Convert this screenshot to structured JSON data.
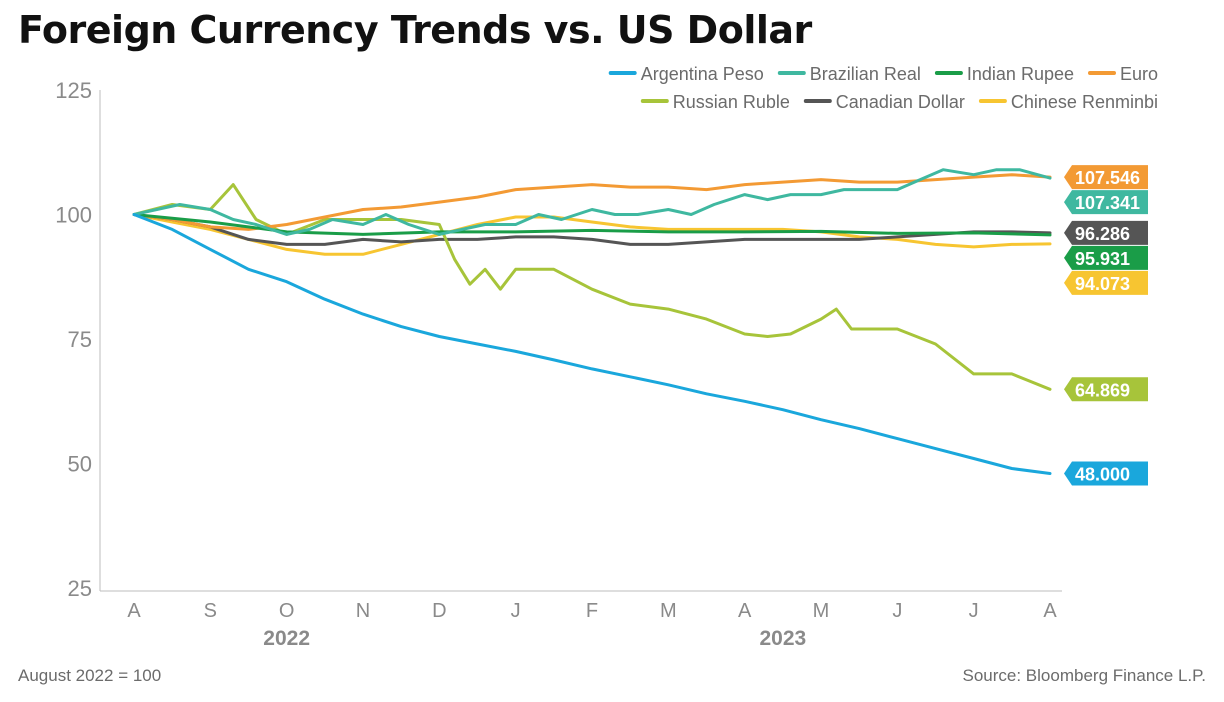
{
  "title": "Foreign Currency Trends vs. US Dollar",
  "footnote_left": "August 2022 = 100",
  "source": "Source: Bloomberg Finance L.P.",
  "chart_data": {
    "type": "line",
    "title": "Foreign Currency Trends vs. US Dollar",
    "xlabel": "",
    "ylabel": "",
    "ylim": [
      25,
      125
    ],
    "y_ticks": [
      25,
      50,
      75,
      100,
      125
    ],
    "x_ticks": [
      {
        "label": "A",
        "month": 0
      },
      {
        "label": "S",
        "month": 1
      },
      {
        "label": "O",
        "month": 2
      },
      {
        "label": "N",
        "month": 3
      },
      {
        "label": "D",
        "month": 4
      },
      {
        "label": "J",
        "month": 5
      },
      {
        "label": "F",
        "month": 6
      },
      {
        "label": "M",
        "month": 7
      },
      {
        "label": "A",
        "month": 8
      },
      {
        "label": "M",
        "month": 9
      },
      {
        "label": "J",
        "month": 10
      },
      {
        "label": "J",
        "month": 11
      },
      {
        "label": "A",
        "month": 12
      }
    ],
    "year_labels": [
      {
        "label": "2022",
        "month": 2
      },
      {
        "label": "2023",
        "month": 8.5
      }
    ],
    "grid": false,
    "legend_position": "top-right",
    "x_unit": "months since August 2022",
    "series": [
      {
        "name": "Argentina Peso",
        "color": "#1aa7dc",
        "end_label": "48.000",
        "x": [
          0,
          0.5,
          1,
          1.5,
          2,
          2.5,
          3,
          3.5,
          4,
          4.5,
          5,
          5.5,
          6,
          6.5,
          7,
          7.5,
          8,
          8.5,
          9,
          9.5,
          10,
          10.5,
          11,
          11.5,
          12
        ],
        "y": [
          100,
          97,
          93,
          89,
          86.5,
          83,
          80,
          77.5,
          75.5,
          74,
          72.5,
          70.8,
          69,
          67.4,
          65.8,
          64,
          62.5,
          60.8,
          58.8,
          57,
          55,
          53,
          51,
          49,
          48
        ]
      },
      {
        "name": "Brazilian Real",
        "color": "#3fb8a0",
        "end_label": "107.341",
        "x": [
          0,
          0.3,
          0.6,
          1,
          1.3,
          1.6,
          2,
          2.3,
          2.6,
          3,
          3.3,
          3.6,
          4,
          4.3,
          4.6,
          5,
          5.3,
          5.6,
          6,
          6.3,
          6.6,
          7,
          7.3,
          7.6,
          8,
          8.3,
          8.6,
          9,
          9.3,
          9.6,
          10,
          10.3,
          10.6,
          11,
          11.3,
          11.6,
          12
        ],
        "y": [
          100,
          101,
          102,
          101,
          99,
          98,
          96,
          97,
          99,
          98,
          100,
          98,
          96,
          97,
          98,
          98,
          100,
          99,
          101,
          100,
          100,
          101,
          100,
          102,
          104,
          103,
          104,
          104,
          105,
          105,
          105,
          107,
          109,
          108,
          109,
          109,
          107.3
        ]
      },
      {
        "name": "Indian Rupee",
        "color": "#1a9d48",
        "end_label": "95.931",
        "x": [
          0,
          1,
          2,
          3,
          4,
          5,
          6,
          7,
          8,
          9,
          10,
          11,
          12
        ],
        "y": [
          100,
          98.5,
          96.5,
          96,
          96.5,
          96.5,
          96.8,
          96.5,
          96.5,
          96.6,
          96.2,
          96.3,
          95.9
        ]
      },
      {
        "name": "Euro",
        "color": "#f39a34",
        "end_label": "107.546",
        "x": [
          0,
          0.5,
          1,
          1.5,
          2,
          2.5,
          3,
          3.5,
          4,
          4.5,
          5,
          5.5,
          6,
          6.5,
          7,
          7.5,
          8,
          8.5,
          9,
          9.5,
          10,
          10.5,
          11,
          11.5,
          12
        ],
        "y": [
          100,
          99,
          97.5,
          97,
          98,
          99.5,
          101,
          101.5,
          102.5,
          103.5,
          105,
          105.5,
          106,
          105.5,
          105.5,
          105,
          106,
          106.5,
          107,
          106.5,
          106.5,
          107,
          107.5,
          108,
          107.5
        ]
      },
      {
        "name": "Russian Ruble",
        "color": "#a7c43a",
        "end_label": "64.869",
        "x": [
          0,
          0.5,
          1,
          1.3,
          1.6,
          2,
          2.5,
          3,
          3.5,
          4,
          4.2,
          4.4,
          4.6,
          4.8,
          5,
          5.5,
          6,
          6.5,
          7,
          7.5,
          8,
          8.3,
          8.6,
          9,
          9.2,
          9.4,
          10,
          10.5,
          11,
          11.5,
          12
        ],
        "y": [
          100,
          102,
          101,
          106,
          99,
          96,
          99,
          99,
          99,
          98,
          91,
          86,
          89,
          85,
          89,
          89,
          85,
          82,
          81,
          79,
          76,
          75.5,
          76,
          79,
          81,
          77,
          77,
          74,
          68,
          68,
          64.9
        ]
      },
      {
        "name": "Canadian Dollar",
        "color": "#555555",
        "end_label": "96.286",
        "x": [
          0,
          0.5,
          1,
          1.5,
          2,
          2.5,
          3,
          3.5,
          4,
          4.5,
          5,
          5.5,
          6,
          6.5,
          7,
          7.5,
          8,
          8.5,
          9,
          9.5,
          10,
          10.5,
          11,
          11.5,
          12
        ],
        "y": [
          100,
          99,
          97.5,
          95,
          94,
          94,
          95,
          94.5,
          95,
          95,
          95.5,
          95.5,
          95,
          94,
          94,
          94.5,
          95,
          95,
          95,
          95,
          95.5,
          96,
          96.5,
          96.5,
          96.3
        ]
      },
      {
        "name": "Chinese Renminbi",
        "color": "#f7c531",
        "end_label": "94.073",
        "x": [
          0,
          0.5,
          1,
          1.5,
          2,
          2.5,
          3,
          3.5,
          4,
          4.5,
          5,
          5.5,
          6,
          6.5,
          7,
          7.5,
          8,
          8.5,
          9,
          9.5,
          10,
          10.5,
          11,
          11.5,
          12
        ],
        "y": [
          100,
          98.5,
          97,
          95,
          93,
          92,
          92,
          94,
          96,
          98,
          99.5,
          99.5,
          98.5,
          97.5,
          97,
          97,
          97,
          97,
          96.5,
          95.5,
          95,
          94,
          93.5,
          94,
          94.1
        ]
      }
    ],
    "end_labels_order": [
      "Euro",
      "Brazilian Real",
      "Canadian Dollar",
      "Indian Rupee",
      "Chinese Renminbi",
      "Russian Ruble",
      "Argentina Peso"
    ]
  }
}
